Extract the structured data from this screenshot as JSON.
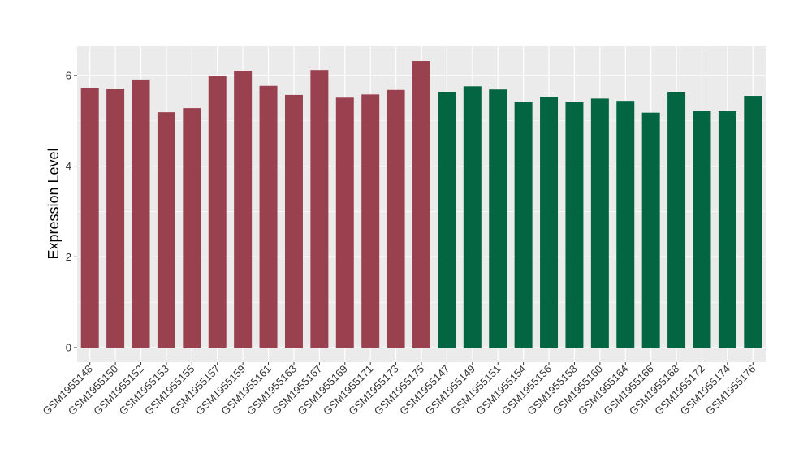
{
  "chart_data": {
    "type": "bar",
    "title": "",
    "xlabel": "",
    "ylabel": "Expression Level",
    "ylim": [
      0,
      6.6
    ],
    "yticks": [
      0,
      2,
      4,
      6
    ],
    "grid": true,
    "legend": "none",
    "categories": [
      "GSM1955148",
      "GSM1955150",
      "GSM1955152",
      "GSM1955153",
      "GSM1955155",
      "GSM1955157",
      "GSM1955159",
      "GSM1955161",
      "GSM1955163",
      "GSM1955167",
      "GSM1955169",
      "GSM1955171",
      "GSM1955173",
      "GSM1955175",
      "GSM1955147",
      "GSM1955149",
      "GSM1955151",
      "GSM1955154",
      "GSM1955156",
      "GSM1955158",
      "GSM1955160",
      "GSM1955164",
      "GSM1955166",
      "GSM1955168",
      "GSM1955172",
      "GSM1955174",
      "GSM1955176"
    ],
    "values": [
      5.73,
      5.71,
      5.91,
      5.19,
      5.28,
      5.98,
      6.09,
      5.77,
      5.57,
      6.12,
      5.51,
      5.58,
      5.68,
      6.32,
      5.64,
      5.76,
      5.69,
      5.41,
      5.53,
      5.41,
      5.49,
      5.44,
      5.18,
      5.64,
      5.21,
      5.21,
      5.55
    ],
    "group_sizes": [
      14,
      13
    ],
    "colors": [
      "#9a4150",
      "#046542"
    ],
    "background": "#ebebeb",
    "grid_color": "#ffffff"
  }
}
